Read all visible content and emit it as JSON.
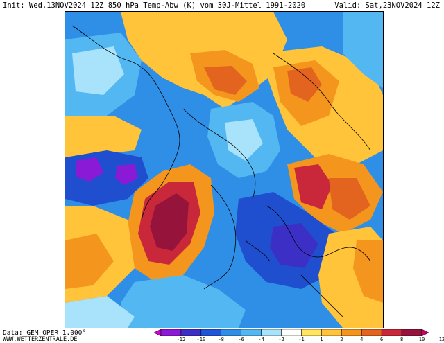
{
  "header": {
    "left_text": "Init: Wed,13NOV2024 12Z 850 hPa Temp-Abw (K) vom 30J-Mittel 1991-2020",
    "right_text": "Valid: Sat,23NOV2024 12Z"
  },
  "footer": {
    "source": "Data: GEM OPER 1.000°",
    "site": "WWW.WETTERZENTRALE.DE"
  },
  "legend": {
    "ticks": [
      "-12",
      "-10",
      "-8",
      "-6",
      "-4",
      "-2",
      "-1",
      "1",
      "2",
      "4",
      "6",
      "8",
      "10",
      "12"
    ],
    "colors": [
      "#d400d4",
      "#8a1ad6",
      "#3c2fc6",
      "#1f55d8",
      "#2f8fe6",
      "#53b8f2",
      "#a8e2fb",
      "#ffffff",
      "#ffe560",
      "#ffc43a",
      "#f4961e",
      "#e2641e",
      "#c8283a",
      "#96143c",
      "#c8006e"
    ]
  },
  "map_colors": {
    "deep_blue": "#1f4fcf",
    "blue": "#2f8fe6",
    "light_blue": "#53b8f2",
    "pale_blue": "#a8e2fb",
    "yellow": "#ffe560",
    "gold": "#ffc43a",
    "orange": "#f4961e",
    "dark_orange": "#e2641e",
    "red": "#c8283a",
    "maroon": "#96143c",
    "purple": "#8a1ad6",
    "magenta": "#c8006e"
  }
}
